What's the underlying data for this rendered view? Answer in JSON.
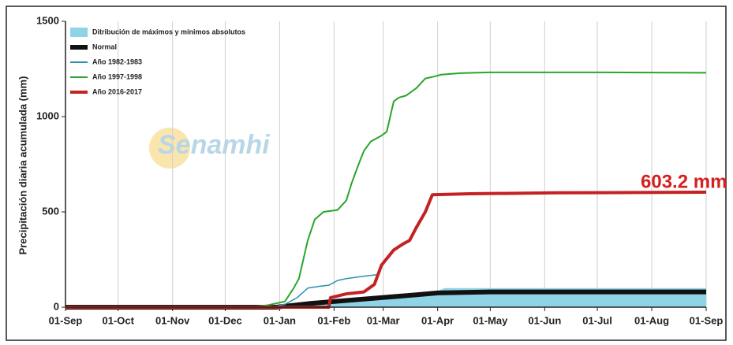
{
  "chart_data": {
    "type": "line",
    "y_label": "Precipitación diaria acumulada (mm)",
    "ylim": [
      0,
      1500
    ],
    "yticks": [
      0,
      500,
      1000,
      1500
    ],
    "xlim": [
      0,
      365
    ],
    "xticks": [
      {
        "value": 0,
        "label": "01-Sep"
      },
      {
        "value": 30,
        "label": "01-Oct"
      },
      {
        "value": 61,
        "label": "01-Nov"
      },
      {
        "value": 91,
        "label": "01-Dec"
      },
      {
        "value": 122,
        "label": "01-Jan"
      },
      {
        "value": 153,
        "label": "01-Feb"
      },
      {
        "value": 181,
        "label": "01-Mar"
      },
      {
        "value": 212,
        "label": "01-Apr"
      },
      {
        "value": 242,
        "label": "01-May"
      },
      {
        "value": 273,
        "label": "01-Jun"
      },
      {
        "value": 303,
        "label": "01-Jul"
      },
      {
        "value": 334,
        "label": "01-Aug"
      },
      {
        "value": 365,
        "label": "01-Sep"
      }
    ],
    "grid": true,
    "legend": "upper left",
    "watermark": "Senamhi",
    "annotation": {
      "text": "603.2 mm",
      "value": 603.2,
      "color": "#d42020"
    },
    "series": [
      {
        "name": "Ditribución de máximos y mínimos absolutos",
        "type": "area",
        "color": "#8fd3e6",
        "x": [
          0,
          120,
          150,
          180,
          212,
          216,
          365
        ],
        "values": [
          0,
          5,
          30,
          60,
          85,
          100,
          100
        ]
      },
      {
        "name": "Normal",
        "color": "#111111",
        "line_width": 6,
        "x": [
          0,
          120,
          140,
          160,
          180,
          200,
          212,
          242,
          300,
          365
        ],
        "values": [
          0,
          0,
          20,
          35,
          50,
          65,
          75,
          80,
          80,
          80
        ]
      },
      {
        "name": "Año 1982-1983",
        "color": "#2a8fb0",
        "line_width": 1.5,
        "x": [
          0,
          118,
          125,
          132,
          138,
          145,
          150,
          155,
          160,
          168,
          172,
          177
        ],
        "values": [
          0,
          0,
          15,
          50,
          100,
          110,
          115,
          140,
          150,
          160,
          165,
          170
        ]
      },
      {
        "name": "Año 1997-1998",
        "color": "#2aa52a",
        "line_width": 2,
        "x": [
          0,
          104,
          115,
          125,
          130,
          133,
          138,
          142,
          147,
          155,
          160,
          163,
          167,
          170,
          174,
          180,
          183,
          187,
          190,
          194,
          200,
          205,
          210,
          214,
          225,
          241,
          300,
          365
        ],
        "values": [
          0,
          0,
          10,
          30,
          100,
          150,
          350,
          460,
          500,
          510,
          560,
          650,
          750,
          820,
          870,
          900,
          920,
          1080,
          1100,
          1110,
          1150,
          1200,
          1210,
          1220,
          1228,
          1232,
          1232,
          1230
        ]
      },
      {
        "name": "Año 2016-2017",
        "color": "#c42222",
        "line_width": 4,
        "x": [
          0,
          150,
          151,
          160,
          170,
          176,
          180,
          187,
          192,
          196,
          200,
          205,
          209,
          230,
          280,
          365
        ],
        "values": [
          0,
          0,
          50,
          70,
          80,
          120,
          220,
          300,
          330,
          350,
          420,
          500,
          590,
          595,
          600,
          603.2
        ]
      }
    ]
  }
}
